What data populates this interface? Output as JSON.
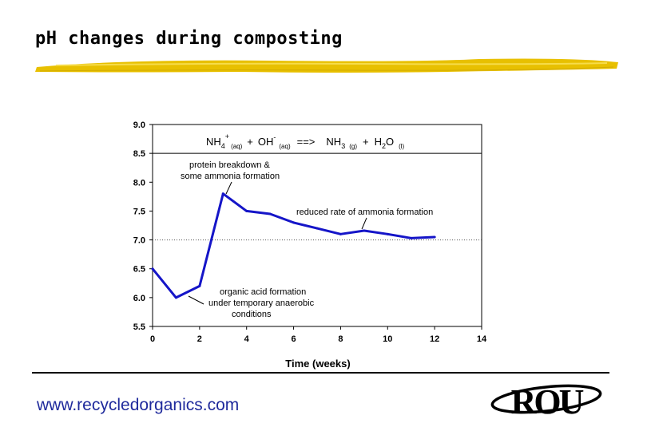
{
  "slide": {
    "title": "pH changes during composting",
    "website": "www.recycledorganics.com",
    "logo_text": "ROU"
  },
  "colors": {
    "series": "#1515c8",
    "text": "#000000",
    "website": "#1f2a9c",
    "brush": "#e8c000"
  },
  "chart_data": {
    "type": "line",
    "title": "",
    "xlabel": "Time (weeks)",
    "ylabel": "",
    "xlim": [
      0,
      14
    ],
    "ylim": [
      5.5,
      9.0
    ],
    "xticks": [
      0,
      2,
      4,
      6,
      8,
      10,
      12,
      14
    ],
    "yticks": [
      "5.5",
      "6.0",
      "6.5",
      "7.0",
      "7.5",
      "8.0",
      "8.5",
      "9.0"
    ],
    "grid": false,
    "series": [
      {
        "name": "pH",
        "x": [
          0,
          1,
          2,
          3,
          4,
          5,
          6,
          7,
          8,
          9,
          10,
          11,
          12
        ],
        "y": [
          6.5,
          6.0,
          6.2,
          7.8,
          7.5,
          7.45,
          7.3,
          7.2,
          7.1,
          7.16,
          7.1,
          7.03,
          7.05
        ]
      }
    ],
    "reference_lines": [
      {
        "y": 8.5,
        "style": "solid"
      },
      {
        "y": 7.0,
        "style": "dotted"
      }
    ],
    "equation": {
      "nh": "NH",
      "nh_sub": "4",
      "nh_sup": "+",
      "aq1": "(aq)",
      "plus1": "+",
      "oh": "OH",
      "oh_sup": "-",
      "aq2": "(aq)",
      "arrow": "==>",
      "nh3": "NH",
      "nh3_sub": "3",
      "g": "(g)",
      "plus2": "+",
      "h2o_h": "H",
      "h2o_sub": "2",
      "h2o_o": "O",
      "l": "(l)"
    },
    "annotations": {
      "protein": [
        "protein breakdown &",
        "some ammonia formation"
      ],
      "reduced": [
        "reduced rate of ammonia formation"
      ],
      "organic": [
        "organic acid formation",
        "under temporary anaerobic",
        "conditions"
      ]
    }
  }
}
